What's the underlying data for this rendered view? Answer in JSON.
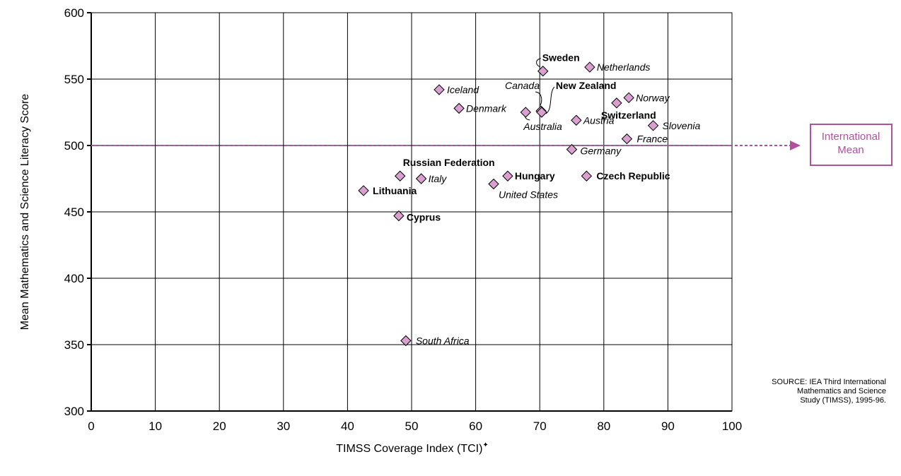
{
  "chart_data": {
    "type": "scatter",
    "xlabel": "TIMSS Coverage Index (TCI)",
    "xlabel_mark": "✦",
    "ylabel": "Mean Mathematics and Science Literacy Score",
    "xlim": [
      0,
      100
    ],
    "ylim": [
      300,
      600
    ],
    "x_ticks": [
      "0",
      "10",
      "20",
      "30",
      "40",
      "50",
      "60",
      "70",
      "80",
      "90",
      "100"
    ],
    "y_ticks": [
      "300",
      "350",
      "400",
      "450",
      "500",
      "550",
      "600"
    ],
    "grid": true,
    "reference_line": {
      "value": 500,
      "label_line1": "International",
      "label_line2": "Mean",
      "color": "#b0519e"
    },
    "marker_fill": "#d9a0cf",
    "points": [
      {
        "label": "Sweden",
        "x": 70.5,
        "y": 556,
        "style": "bold"
      },
      {
        "label": "Netherlands",
        "x": 77.8,
        "y": 559,
        "style": "italic"
      },
      {
        "label": "Iceland",
        "x": 54.3,
        "y": 542,
        "style": "italic"
      },
      {
        "label": "Canada",
        "x": 70.2,
        "y": 526,
        "style": "italic"
      },
      {
        "label": "New Zealand",
        "x": 70.3,
        "y": 525,
        "style": "bold"
      },
      {
        "label": "Norway",
        "x": 83.9,
        "y": 536,
        "style": "italic"
      },
      {
        "label": "Switzerland",
        "x": 82.0,
        "y": 532,
        "style": "bold"
      },
      {
        "label": "Denmark",
        "x": 57.4,
        "y": 528,
        "style": "italic"
      },
      {
        "label": "Australia",
        "x": 67.8,
        "y": 525,
        "style": "italic"
      },
      {
        "label": "Austria",
        "x": 75.7,
        "y": 519,
        "style": "italic"
      },
      {
        "label": "Slovenia",
        "x": 87.7,
        "y": 515,
        "style": "italic"
      },
      {
        "label": "France",
        "x": 83.6,
        "y": 505,
        "style": "italic"
      },
      {
        "label": "Germany",
        "x": 75.0,
        "y": 497,
        "style": "italic"
      },
      {
        "label": "Russian Federation",
        "x": 48.2,
        "y": 477,
        "style": "bold"
      },
      {
        "label": "Italy",
        "x": 51.5,
        "y": 475,
        "style": "italic"
      },
      {
        "label": "Hungary",
        "x": 65.0,
        "y": 477,
        "style": "bold"
      },
      {
        "label": "Czech Republic",
        "x": 77.3,
        "y": 477,
        "style": "bold"
      },
      {
        "label": "United States",
        "x": 62.8,
        "y": 471,
        "style": "italic"
      },
      {
        "label": "Lithuania",
        "x": 42.5,
        "y": 466,
        "style": "bold"
      },
      {
        "label": "Cyprus",
        "x": 48.0,
        "y": 447,
        "style": "bold"
      },
      {
        "label": "South Africa",
        "x": 49.1,
        "y": 353,
        "style": "italic"
      }
    ]
  },
  "source": {
    "line1": "SOURCE:  IEA Third International",
    "line2": "Mathematics and Science",
    "line3": "Study (TIMSS), 1995-96."
  }
}
